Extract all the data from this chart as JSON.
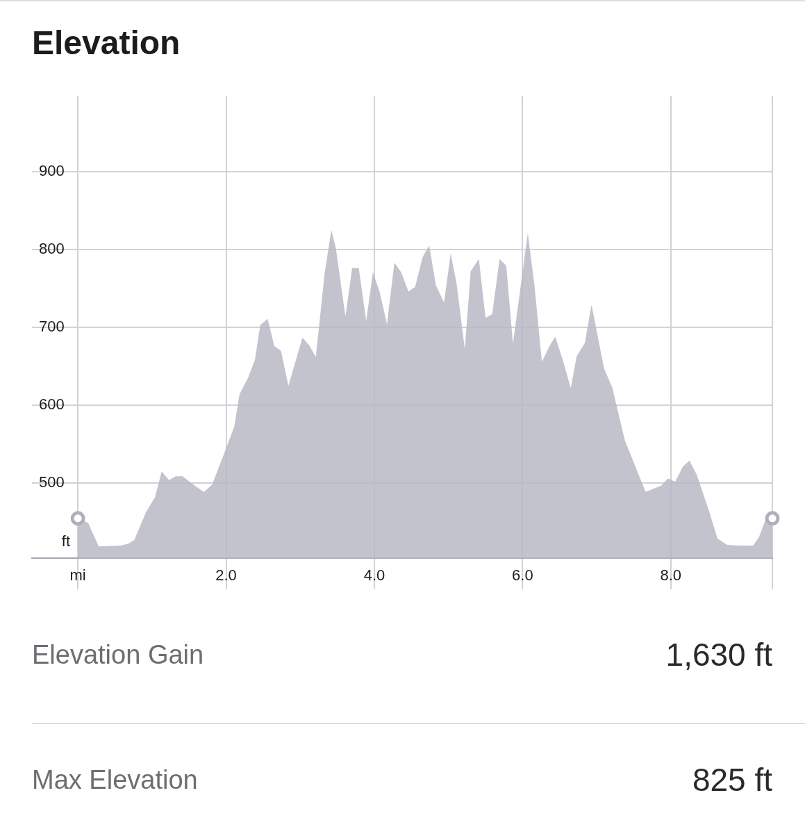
{
  "chart_data": {
    "type": "area",
    "title": "Elevation",
    "ylabel": "ft",
    "x": [
      0,
      0.14,
      0.28,
      0.57,
      0.67,
      0.76,
      0.92,
      1.04,
      1.13,
      1.23,
      1.32,
      1.41,
      1.59,
      1.7,
      1.81,
      1.98,
      2.11,
      2.18,
      2.3,
      2.39,
      2.46,
      2.56,
      2.65,
      2.74,
      2.84,
      3.03,
      3.12,
      3.21,
      3.33,
      3.42,
      3.48,
      3.61,
      3.7,
      3.79,
      3.89,
      3.98,
      4.07,
      4.17,
      4.27,
      4.36,
      4.46,
      4.55,
      4.65,
      4.74,
      4.83,
      4.94,
      5.03,
      5.11,
      5.22,
      5.3,
      5.41,
      5.5,
      5.59,
      5.69,
      5.78,
      5.87,
      6.07,
      6.16,
      6.26,
      6.37,
      6.44,
      6.54,
      6.65,
      6.73,
      6.84,
      6.93,
      7.1,
      7.21,
      7.38,
      7.66,
      7.87,
      7.96,
      8.06,
      8.16,
      8.25,
      8.35,
      8.52,
      8.63,
      8.76,
      8.91,
      9.11,
      9.19,
      9.28,
      9.37
    ],
    "values": [
      455,
      449,
      419,
      420,
      422,
      427,
      463,
      482,
      515,
      504,
      509,
      509,
      496,
      489,
      498,
      540,
      573,
      614,
      636,
      659,
      703,
      711,
      676,
      670,
      625,
      687,
      677,
      662,
      770,
      825,
      802,
      714,
      776,
      776,
      708,
      771,
      746,
      704,
      783,
      771,
      746,
      752,
      790,
      805,
      754,
      732,
      795,
      756,
      672,
      772,
      788,
      712,
      717,
      788,
      779,
      679,
      821,
      754,
      656,
      677,
      688,
      659,
      622,
      663,
      680,
      729,
      647,
      623,
      555,
      489,
      497,
      506,
      502,
      521,
      529,
      511,
      463,
      429,
      421,
      420,
      420,
      431,
      454,
      455
    ],
    "color": "#b8b8c6",
    "xlim": [
      -0.62,
      9.37
    ],
    "ylim": [
      404,
      997
    ],
    "xticks": [
      {
        "value": 0,
        "label": "mi"
      },
      {
        "value": 2,
        "label": "2.0"
      },
      {
        "value": 4,
        "label": "4.0"
      },
      {
        "value": 6,
        "label": "6.0"
      },
      {
        "value": 8,
        "label": "8.0"
      },
      {
        "value": 9.37,
        "label": null
      }
    ],
    "yticks": [
      500,
      600,
      700,
      800,
      900
    ],
    "grid": true,
    "annotations": [
      "Elevation Gain",
      "1,630 ft",
      "Max Elevation",
      "825 ft"
    ]
  }
}
